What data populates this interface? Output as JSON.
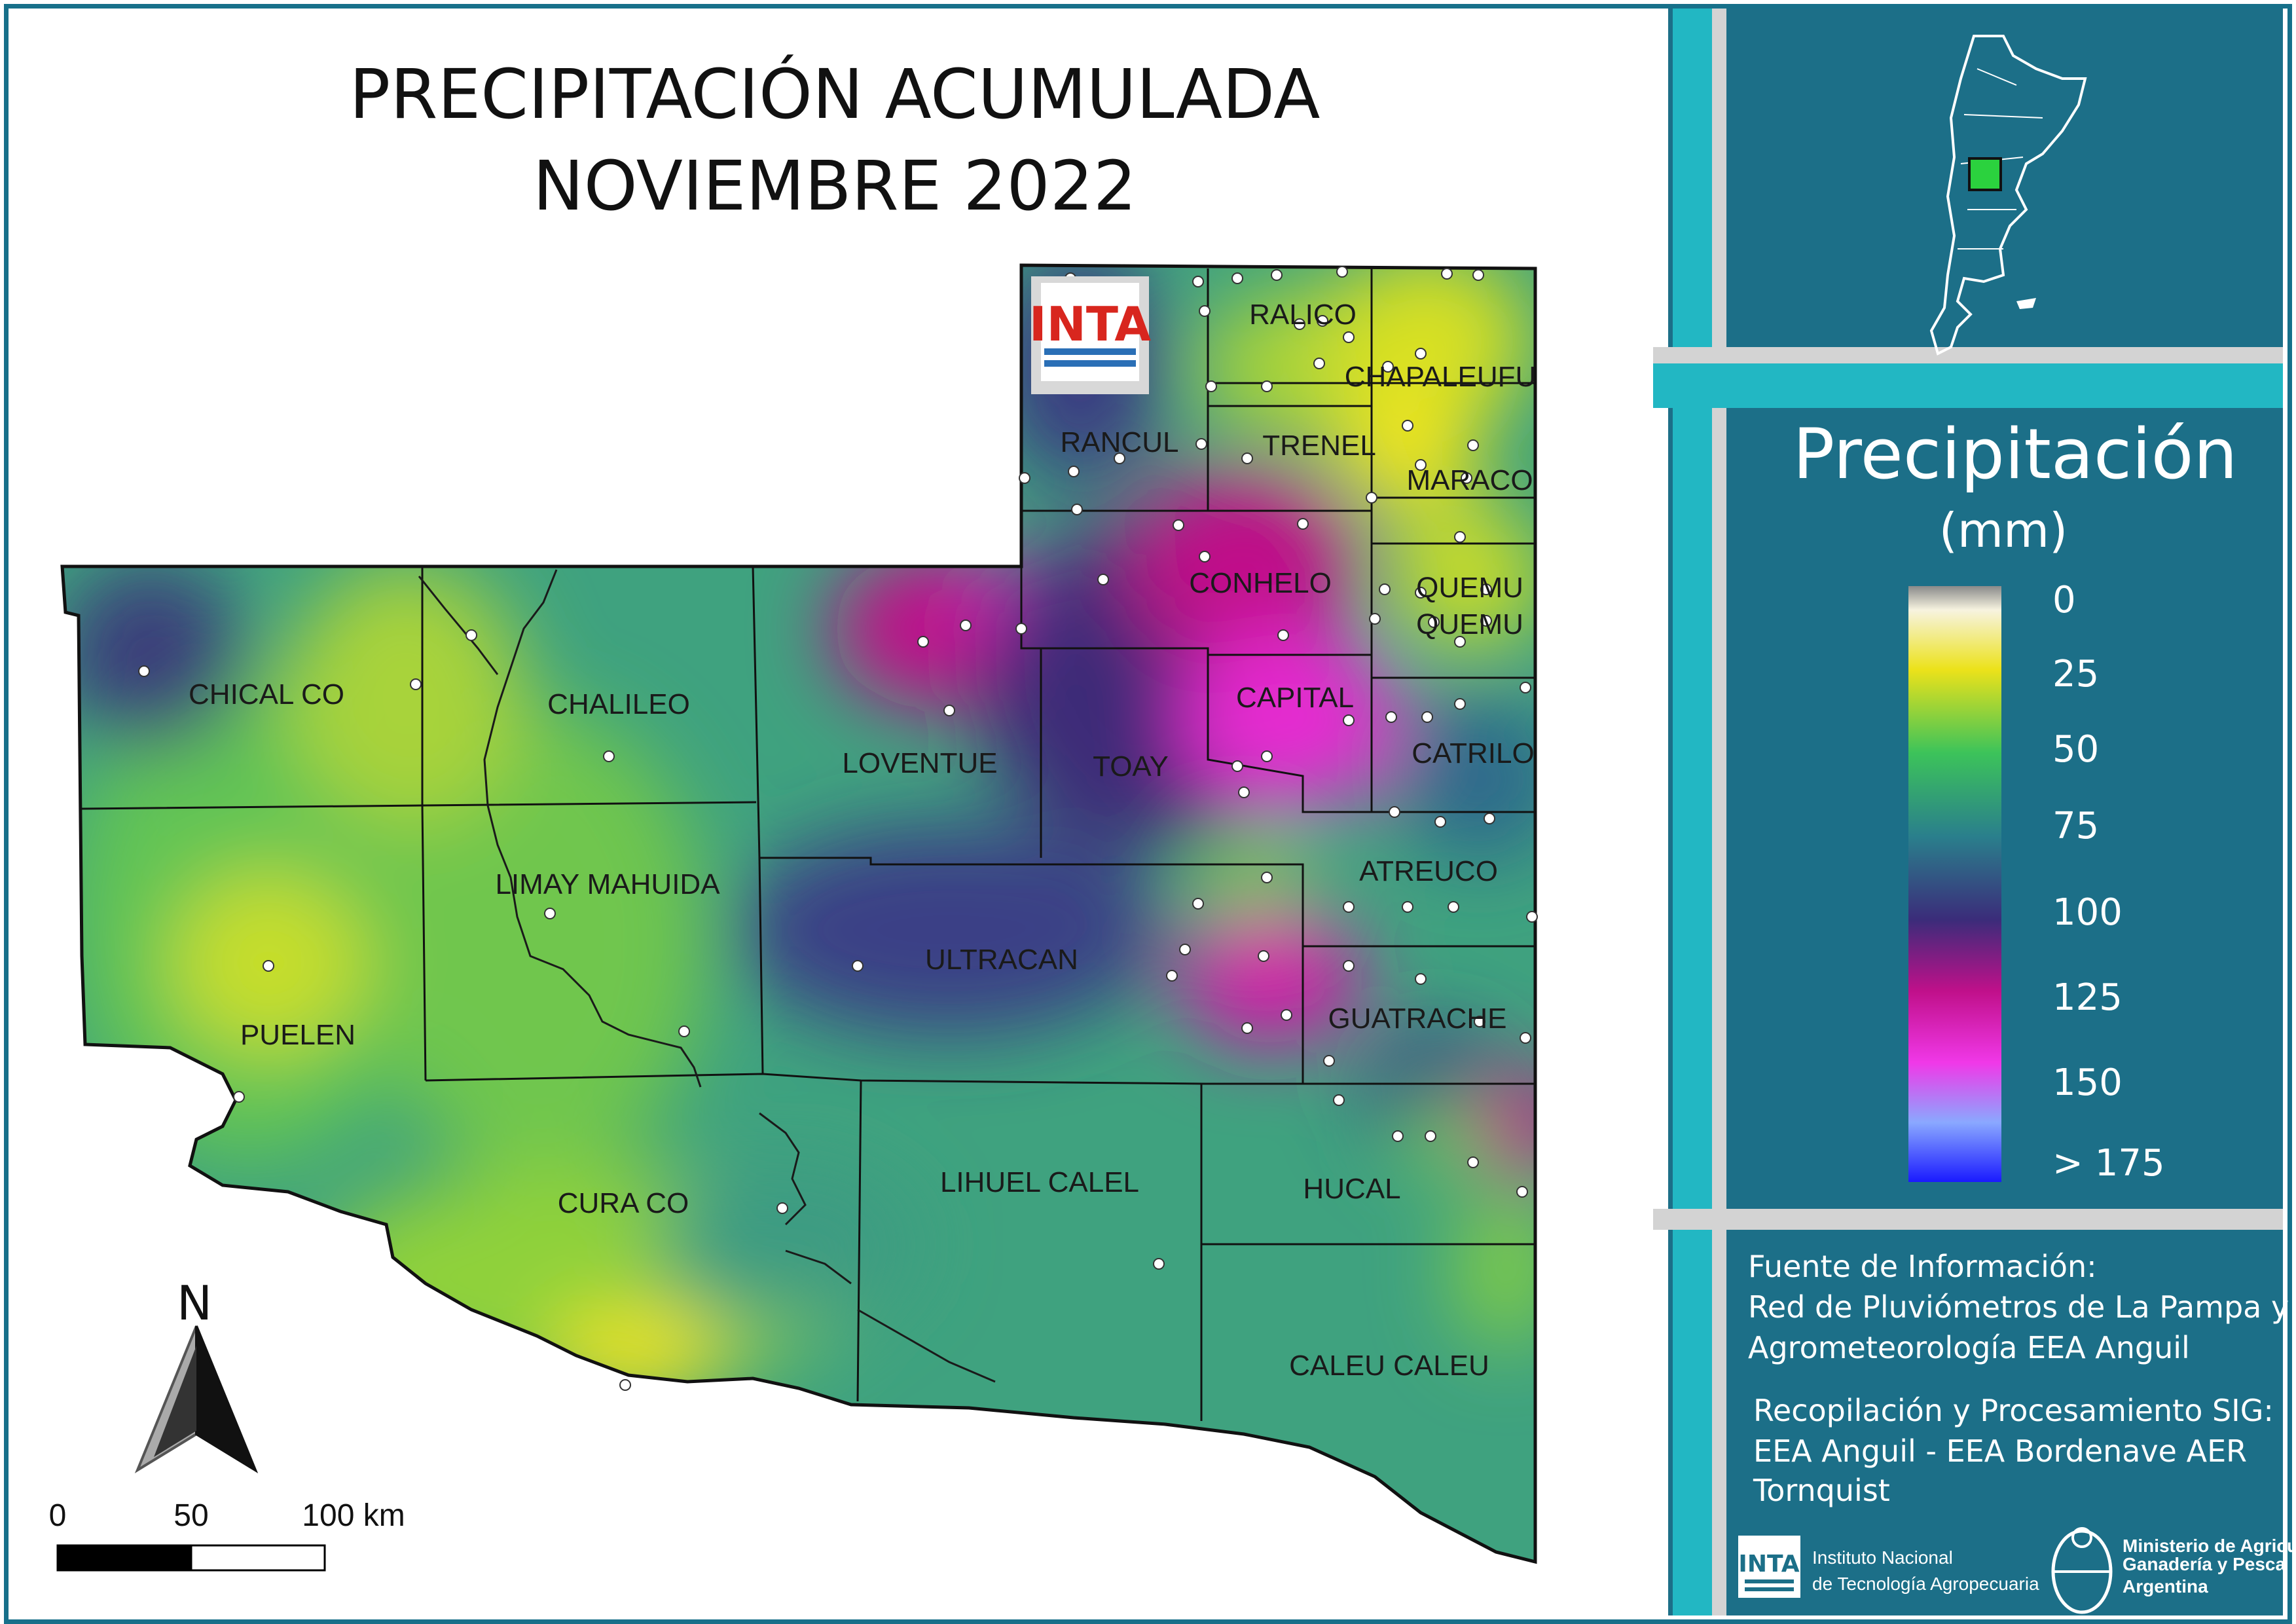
{
  "map": {
    "title_line1": "PRECIPITACIÓN ACUMULADA",
    "title_line2": "NOVIEMBRE 2022",
    "departments": [
      "RALICO",
      "CHAPALEUFU",
      "RANCUL",
      "TRENEL",
      "MARACO",
      "CONHELO",
      "QUEMU",
      "QUEMU",
      "CHICAL CO",
      "CHALILEO",
      "LOVENTUE",
      "TOAY",
      "CAPITAL",
      "CATRILO",
      "ATREUCO",
      "LIMAY MAHUIDA",
      "ULTRACAN",
      "PUELEN",
      "GUATRACHE",
      "HUCAL",
      "CURA CO",
      "LIHUEL CALEL",
      "CALEU CALEU"
    ],
    "north": "N",
    "scale": {
      "s0": "0",
      "s50": "50",
      "s100": "100 km"
    },
    "logo_text": "INTA"
  },
  "legend": {
    "title": "Precipitación",
    "unit": "(mm)",
    "ticks": [
      "0",
      "25",
      "50",
      "75",
      "100",
      "125",
      "150",
      "> 175"
    ],
    "colors": [
      "#f7f3e0",
      "#ece21a",
      "#3cc35a",
      "#2a7f8c",
      "#3b2c7a",
      "#c0108a",
      "#f038e8",
      "#8aa8ff",
      "#1a1aff"
    ]
  },
  "credits": {
    "fuente_title": "Fuente de Información:",
    "fuente_line1": "Red de Pluviómetros de La Pampa y",
    "fuente_line2": "Agrometeorología EEA Anguil",
    "recop_title": "Recopilación y Procesamiento SIG:",
    "recop_line1": "EEA Anguil - EEA Bordenave AER",
    "recop_line2": "Tornquist"
  },
  "footer": {
    "inta_logo": "INTA",
    "inta_line1": "Instituto Nacional",
    "inta_line2": "de Tecnología Agropecuaria",
    "min_line1": "Ministerio de Agricultura,",
    "min_line2": "Ganadería y Pesca",
    "min_line3": "Argentina"
  }
}
